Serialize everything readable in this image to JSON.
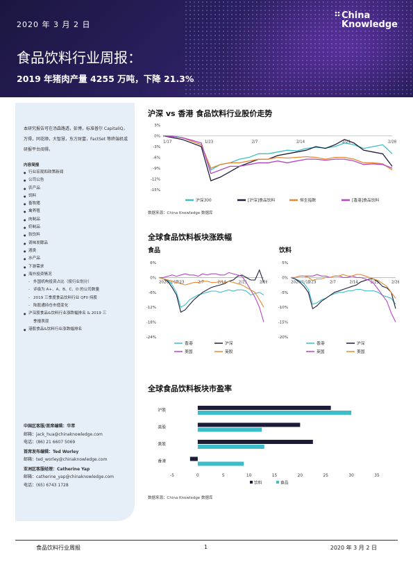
{
  "header": {
    "date": "2020 年 3 月 2 日",
    "logo_line1": "China",
    "logo_line2": "Knowledge",
    "title": "食品饮料行业周报：",
    "subtitle": "2019 年猪肉产量 4255 万吨，下降 21.3%"
  },
  "sidebar": {
    "intro": "本研究报告可在汤森路透，彭博，标准普尔 CapitalIQ，万得，同花顺，大智慧，东方财富，FactSet 等终端机或研报平台阅得。",
    "toc_header": "内容简报",
    "toc_items": [
      "行业宏观和政策新闻",
      "公司公告",
      "农产品",
      "饲料",
      "畜牧猪",
      "禽养殖",
      "肉制品",
      "奶制品",
      "软饮料",
      "调味发酵品",
      "酒类",
      "水产品",
      "下游需求",
      "海外投资情况"
    ],
    "toc_sub": [
      "外国机构投资占比（按行业划分）",
      "评级为 A+、A、B、C、D 的公司数量",
      "2019 三季度食品饮料行业 QFII 持股",
      "陆股通持仓市值变化"
    ],
    "toc_items2_line1": "沪深股食品&饮料行业涨跌幅排名 & 2019 三",
    "toc_items2_line2": "季报表现",
    "toc_items3": "港股食品&饮料行业涨跌幅排名"
  },
  "contacts": [
    {
      "title": "中国区客服/首席编辑：华萃",
      "email": "邮箱：jack_hua@chinaknowledge.com",
      "phone": "电话：(86) 21 6607 5069"
    },
    {
      "title": "首席发布编辑：Ted Worley",
      "email": "邮箱：ted_worley@chinaknowledge.com",
      "phone": ""
    },
    {
      "title": "亚洲区客服经理：Catherine Yap",
      "email": "邮箱：catherine_yap@chinaknowledge.com",
      "phone": "电话：(65) 6743 1728"
    }
  ],
  "sections": {
    "s1_title": "沪深 vs 香港  食品饮料行业股价走势",
    "s1_source": "数据来源：China Knowledge 数据库",
    "s2_title": "全球食品饮料板块涨跌幅",
    "s2_food": "食品",
    "s2_drink": "饮料",
    "s3_title": "全球食品饮料板块市盈率",
    "s3_source": "数据来源：China Knowledge 数据库"
  },
  "footer": {
    "left": "食品饮料行业周报",
    "page": "1",
    "right": "2020 年 3 月 2 日"
  },
  "chart_data": [
    {
      "type": "line",
      "x": [
        "1/17",
        "1/20",
        "1/21",
        "1/22",
        "1/23",
        "2/3",
        "2/4",
        "2/5",
        "2/6",
        "2/7",
        "2/10",
        "2/11",
        "2/12",
        "2/13",
        "2/14",
        "2/17",
        "2/18",
        "2/19",
        "2/20",
        "2/21",
        "2/24",
        "2/25",
        "2/26",
        "2/27",
        "2/28"
      ],
      "x_ticks": [
        "1/17",
        "1/23",
        "2/7",
        "2/14",
        "2/21",
        "2/28"
      ],
      "ylim": [
        -15,
        3
      ],
      "y_ticks": [
        "3%",
        "0%",
        "-3%",
        "-6%",
        "-9%",
        "-12%",
        "-15%"
      ],
      "series": [
        {
          "name": "沪深300",
          "color": "#3dbdc8",
          "values": [
            0,
            0,
            -0.5,
            -1.5,
            -2.5,
            -9.5,
            -8,
            -7.5,
            -6.5,
            -6,
            -5,
            -5,
            -4.5,
            -4,
            -4.2,
            -3.5,
            -3.2,
            -3.4,
            -3,
            -2,
            -2.5,
            -3.5,
            -3,
            -2.5,
            -5
          ]
        },
        {
          "name": "[沪深]食品饮料",
          "color": "#1c1c3a",
          "values": [
            0,
            -0.5,
            -1,
            -2,
            -3,
            -12.5,
            -11.5,
            -10,
            -8.5,
            -7.5,
            -6.5,
            -6.5,
            -5.5,
            -5,
            -4.5,
            -4,
            -3,
            -3.5,
            -2.5,
            -1,
            -2,
            -4,
            -4.5,
            -5,
            -8.5
          ]
        },
        {
          "name": "恒生指数",
          "color": "#e8892f",
          "values": [
            0,
            -0.2,
            -0.5,
            -1.5,
            -2.5,
            -9,
            -8,
            -7.5,
            -7.5,
            -7,
            -6.5,
            -6.5,
            -6,
            -6.2,
            -6,
            -5.8,
            -6,
            -6.5,
            -6,
            -6,
            -6.5,
            -7.5,
            -7.5,
            -7.8,
            -9.5
          ]
        },
        {
          "name": "[香港]食品饮料",
          "color": "#b445c4",
          "values": [
            0,
            -0.2,
            -0.5,
            -1.2,
            -2,
            -10.5,
            -9.5,
            -8.5,
            -8.5,
            -8,
            -7.5,
            -7.5,
            -7,
            -7.5,
            -7,
            -6.5,
            -6.5,
            -6.8,
            -6.5,
            -6.5,
            -7,
            -8,
            -7.8,
            -8,
            -9
          ]
        }
      ]
    },
    {
      "type": "line",
      "title": "食品",
      "x_ticks": [
        "2020/1/17",
        "1/23",
        "2/7",
        "2/14",
        "2/21",
        "2/28"
      ],
      "ylim": [
        -24,
        6
      ],
      "y_ticks": [
        "6%",
        "0%",
        "-6%",
        "-12%",
        "-18%",
        "-24%"
      ],
      "series": [
        {
          "name": "香港",
          "color": "#3dbdc8",
          "values": [
            0,
            -0.5,
            -1,
            -3,
            -6,
            -12,
            -11,
            -9,
            -8,
            -7,
            -6.5,
            -6,
            -5.5,
            -5.5,
            -6,
            -5.5,
            -5,
            -5.5,
            -5,
            -5,
            -5.5,
            -7,
            -6.5,
            -6,
            -7
          ]
        },
        {
          "name": "沪深",
          "color": "#1c1c3a",
          "values": [
            0,
            -0.5,
            -1.5,
            -4,
            -7,
            -14,
            -13,
            -11,
            -9,
            -7.5,
            -6,
            -5,
            -4,
            -3.5,
            -3,
            -2.5,
            -1.5,
            -1,
            0.5,
            1,
            0,
            -1,
            -1,
            3,
            -2
          ]
        },
        {
          "name": "美国",
          "color": "#b445c4",
          "values": [
            0,
            0,
            0.5,
            1,
            0.5,
            1,
            1.5,
            1,
            1,
            0.5,
            1.5,
            1,
            1.5,
            1.5,
            1,
            1,
            2,
            1.5,
            1,
            0.5,
            -2,
            -5,
            -8,
            -12,
            -18
          ]
        },
        {
          "name": "英股",
          "color": "#e8892f",
          "values": [
            0,
            -0.5,
            -1,
            -1.5,
            -2,
            -2.5,
            -3,
            -2.5,
            -2,
            -2,
            -1.5,
            -1.5,
            -2,
            -2,
            -1.5,
            -2,
            -1.5,
            -2,
            -2.5,
            -3,
            -4,
            -5,
            -6,
            -9,
            -12
          ]
        }
      ]
    },
    {
      "type": "line",
      "title": "饮料",
      "x_ticks": [
        "2020/1/17",
        "1/23",
        "2/7",
        "2/14",
        "2/21",
        "2/28"
      ],
      "ylim": [
        -20,
        5
      ],
      "y_ticks": [
        "5%",
        "0%",
        "-5%",
        "-10%",
        "-15%",
        "-20%"
      ],
      "series": [
        {
          "name": "香港",
          "color": "#3dbdc8",
          "values": [
            0,
            -0.5,
            -1,
            -2,
            -4,
            -9,
            -8.5,
            -7.5,
            -7,
            -6,
            -5.5,
            -5,
            -5,
            -4.5,
            -4.5,
            -4,
            -4,
            -4.5,
            -4.5,
            -4.5,
            -5,
            -6,
            -6.5,
            -7,
            -9
          ]
        },
        {
          "name": "沪深",
          "color": "#1c1c3a",
          "values": [
            0,
            -0.5,
            -1.5,
            -3,
            -5,
            -10.5,
            -9.5,
            -8,
            -7,
            -6,
            -5,
            -4.5,
            -4,
            -3.5,
            -3,
            -2.5,
            -1.5,
            -1,
            -0.5,
            -0.5,
            -1.5,
            -3,
            -3.5,
            -5,
            -10.5
          ]
        },
        {
          "name": "英国",
          "color": "#b445c4",
          "values": [
            0,
            0,
            0.5,
            0.5,
            0.5,
            0.5,
            1,
            0.5,
            0.5,
            0,
            0.5,
            0.5,
            0,
            0,
            0.5,
            0,
            0,
            -0.5,
            -1,
            -2,
            -4,
            -6,
            -8,
            -12,
            -15
          ]
        },
        {
          "name": "美国",
          "color": "#e8892f",
          "values": [
            0,
            0,
            0.5,
            0.5,
            0,
            -1,
            -0.5,
            -0.5,
            0,
            0,
            0.5,
            0.5,
            1,
            0.5,
            0.5,
            1,
            1,
            0.5,
            0,
            -0.5,
            -1,
            -2,
            -3,
            -5,
            -7
          ]
        }
      ]
    },
    {
      "type": "bar",
      "orientation": "horizontal",
      "categories": [
        "沪股",
        "英股",
        "美股",
        "香港"
      ],
      "xlim": [
        -5,
        35
      ],
      "x_ticks": [
        "-5",
        "0",
        "5",
        "10",
        "15",
        "20",
        "25",
        "30",
        "35"
      ],
      "series": [
        {
          "name": "饮料",
          "color": "#1c1c3a",
          "values": [
            26,
            20,
            22.5,
            -1.5
          ]
        },
        {
          "name": "食品",
          "color": "#3dbdc8",
          "values": [
            30,
            12.5,
            13,
            9
          ]
        }
      ]
    }
  ]
}
